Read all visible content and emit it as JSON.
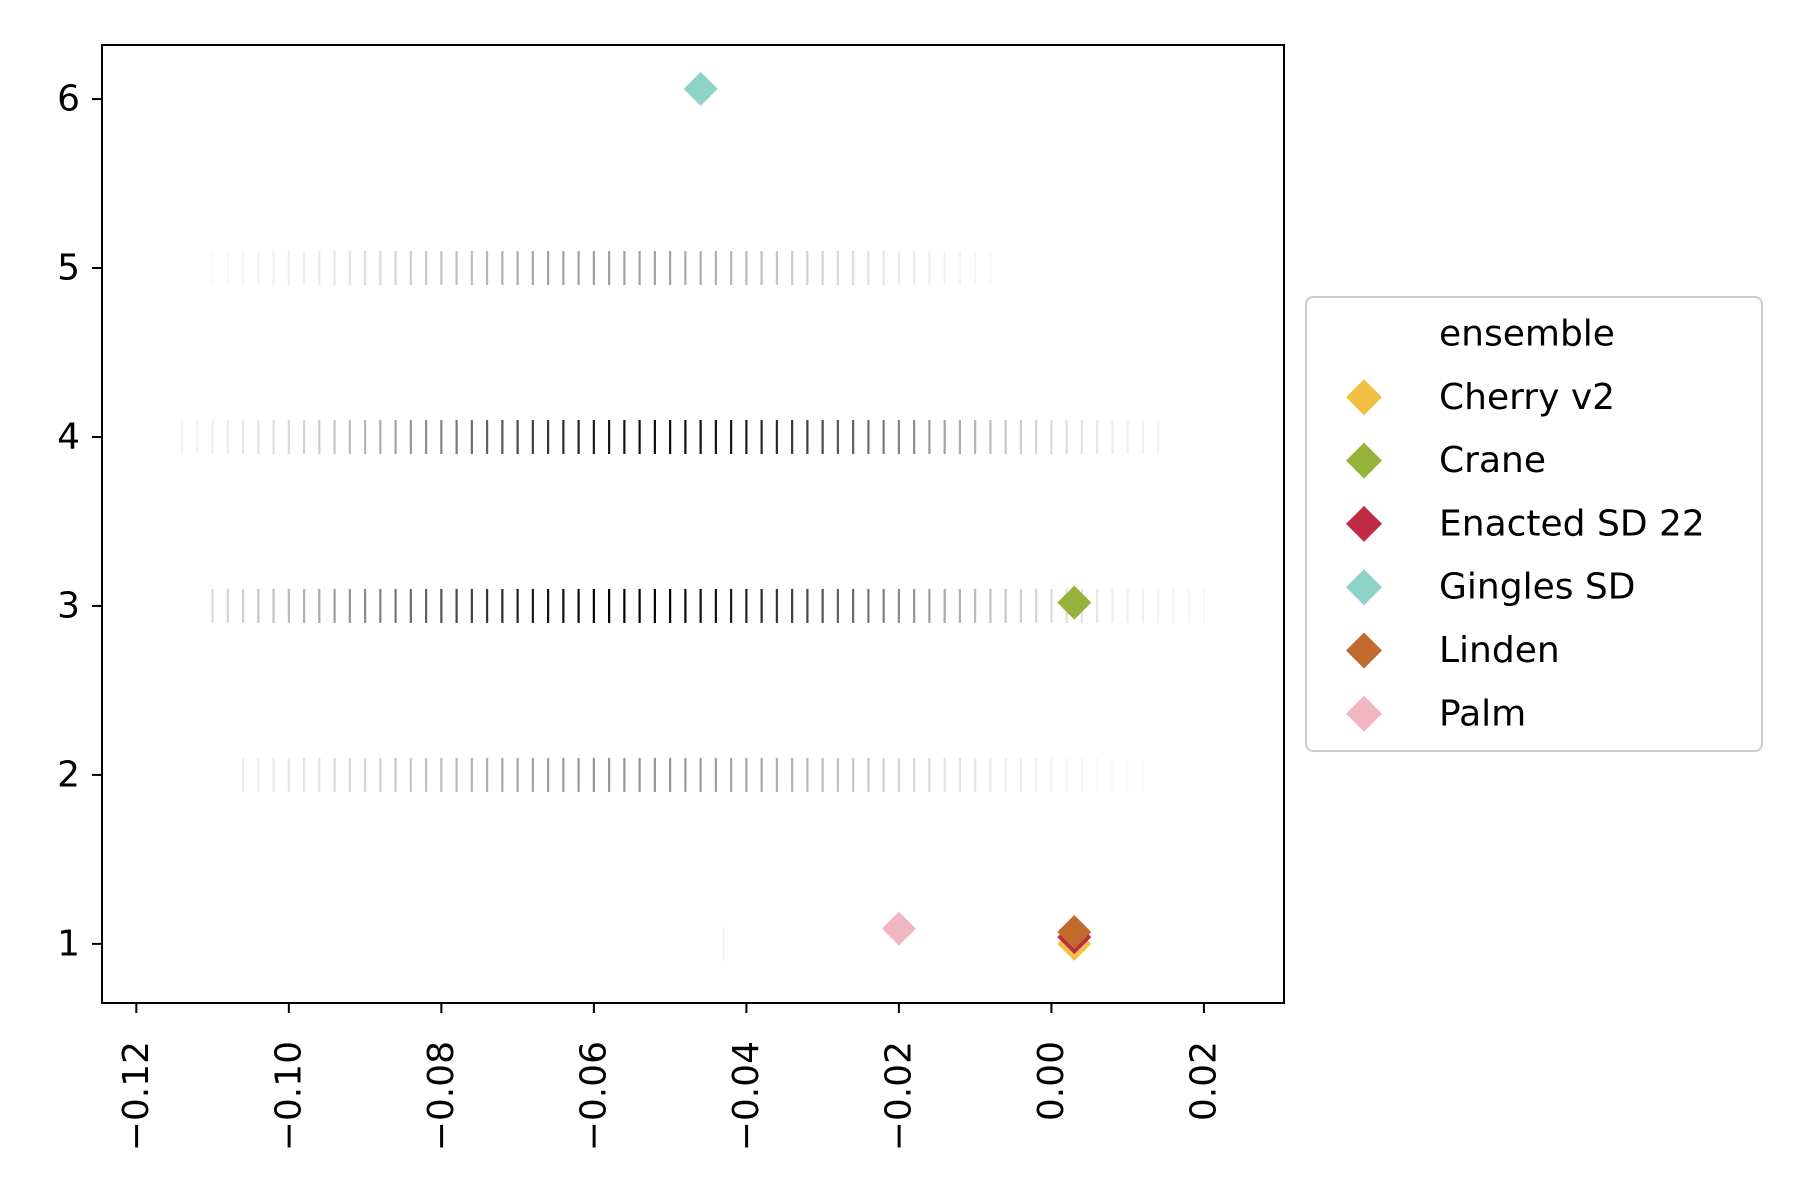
{
  "chart_data": {
    "type": "scatter",
    "title": "",
    "xlabel": "",
    "ylabel": "",
    "xlim": [
      -0.1245,
      0.0305
    ],
    "ylim": [
      0.65,
      6.32
    ],
    "x_ticks": [
      -0.12,
      -0.1,
      -0.08,
      -0.06,
      -0.04,
      -0.02,
      0.0,
      0.02
    ],
    "x_tick_labels": [
      "−0.12",
      "−0.10",
      "−0.08",
      "−0.06",
      "−0.04",
      "−0.02",
      "0.00",
      "0.02"
    ],
    "y_ticks": [
      1,
      2,
      3,
      4,
      5,
      6
    ],
    "y_tick_labels": [
      "1",
      "2",
      "3",
      "4",
      "5",
      "6"
    ],
    "grid": false,
    "legend": {
      "title": "ensemble",
      "placement": "outside-right"
    },
    "background_distribution": {
      "color": "#000000",
      "x_step": 0.002,
      "rows": [
        {
          "y": 1,
          "x_min": -0.043,
          "x_max": -0.043,
          "peak_x": -0.043,
          "max_opacity": 0.05,
          "spread": 0.001
        },
        {
          "y": 2,
          "x_min": -0.106,
          "x_max": 0.022,
          "peak_x": -0.055,
          "max_opacity": 0.42,
          "spread": 0.026
        },
        {
          "y": 3,
          "x_min": -0.11,
          "x_max": 0.02,
          "peak_x": -0.055,
          "max_opacity": 1.0,
          "spread": 0.028
        },
        {
          "y": 4,
          "x_min": -0.114,
          "x_max": 0.014,
          "peak_x": -0.05,
          "max_opacity": 0.95,
          "spread": 0.026
        },
        {
          "y": 5,
          "x_min": -0.11,
          "x_max": -0.008,
          "peak_x": -0.058,
          "max_opacity": 0.38,
          "spread": 0.022
        }
      ]
    },
    "series": [
      {
        "name": "Cherry v2",
        "color": "#f2c043",
        "marker": "diamond",
        "points": [
          {
            "x": 0.003,
            "y": 1.0
          }
        ]
      },
      {
        "name": "Crane",
        "color": "#95b33a",
        "marker": "diamond",
        "points": [
          {
            "x": 0.003,
            "y": 3.02
          }
        ]
      },
      {
        "name": "Enacted SD 22",
        "color": "#c02a42",
        "marker": "diamond",
        "points": [
          {
            "x": 0.003,
            "y": 1.04
          }
        ]
      },
      {
        "name": "Gingles SD",
        "color": "#8ed3c7",
        "marker": "diamond",
        "points": [
          {
            "x": -0.046,
            "y": 6.06
          }
        ]
      },
      {
        "name": "Linden",
        "color": "#c06b2d",
        "marker": "diamond",
        "points": [
          {
            "x": 0.003,
            "y": 1.07
          }
        ]
      },
      {
        "name": "Palm",
        "color": "#f2b6c2",
        "marker": "diamond",
        "points": [
          {
            "x": -0.02,
            "y": 1.09
          }
        ]
      }
    ]
  }
}
